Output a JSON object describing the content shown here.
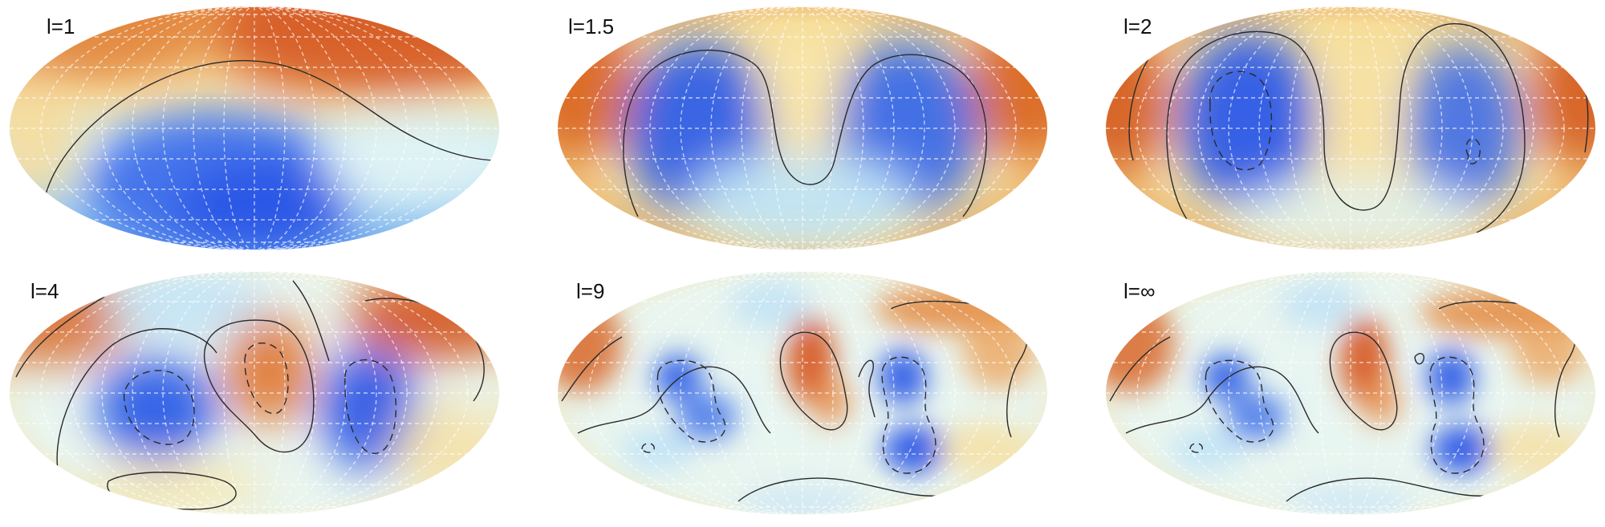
{
  "figure": {
    "panels": [
      {
        "label": "l=1"
      },
      {
        "label": "l=1.5"
      },
      {
        "label": "l=2"
      },
      {
        "label": "l=4"
      },
      {
        "label": "l=9"
      },
      {
        "label": "l=∞"
      }
    ],
    "colors": {
      "low": "#2450e6",
      "mid_low": "#8ccaf2",
      "neutral": "#e6f4f4",
      "mid_high": "#f7e3a2",
      "high": "#d0551d",
      "contour": "#2a2a2a",
      "grid": "#ffffff"
    }
  }
}
